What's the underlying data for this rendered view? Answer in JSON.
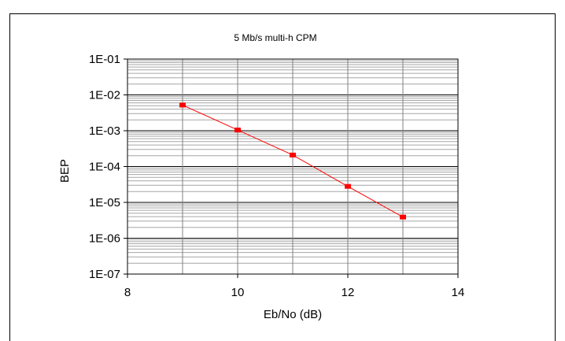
{
  "chart_data": {
    "type": "line",
    "title": "5 Mb/s multi-h CPM",
    "xlabel": "Eb/No (dB)",
    "ylabel": "BEP",
    "xlim": [
      8,
      14
    ],
    "ylim": [
      1e-07,
      0.1
    ],
    "yscale": "log",
    "grid": true,
    "x_ticks": [
      "8",
      "10",
      "12",
      "14"
    ],
    "y_ticks": [
      "1E-01",
      "1E-02",
      "1E-03",
      "1E-04",
      "1E-05",
      "1E-06",
      "1E-07"
    ],
    "series": [
      {
        "color": "#ff0000",
        "marker": "square",
        "x": [
          9,
          10,
          11,
          12,
          13
        ],
        "y": [
          0.0052,
          0.00105,
          0.00021,
          2.8e-05,
          3.9e-06
        ]
      }
    ]
  }
}
